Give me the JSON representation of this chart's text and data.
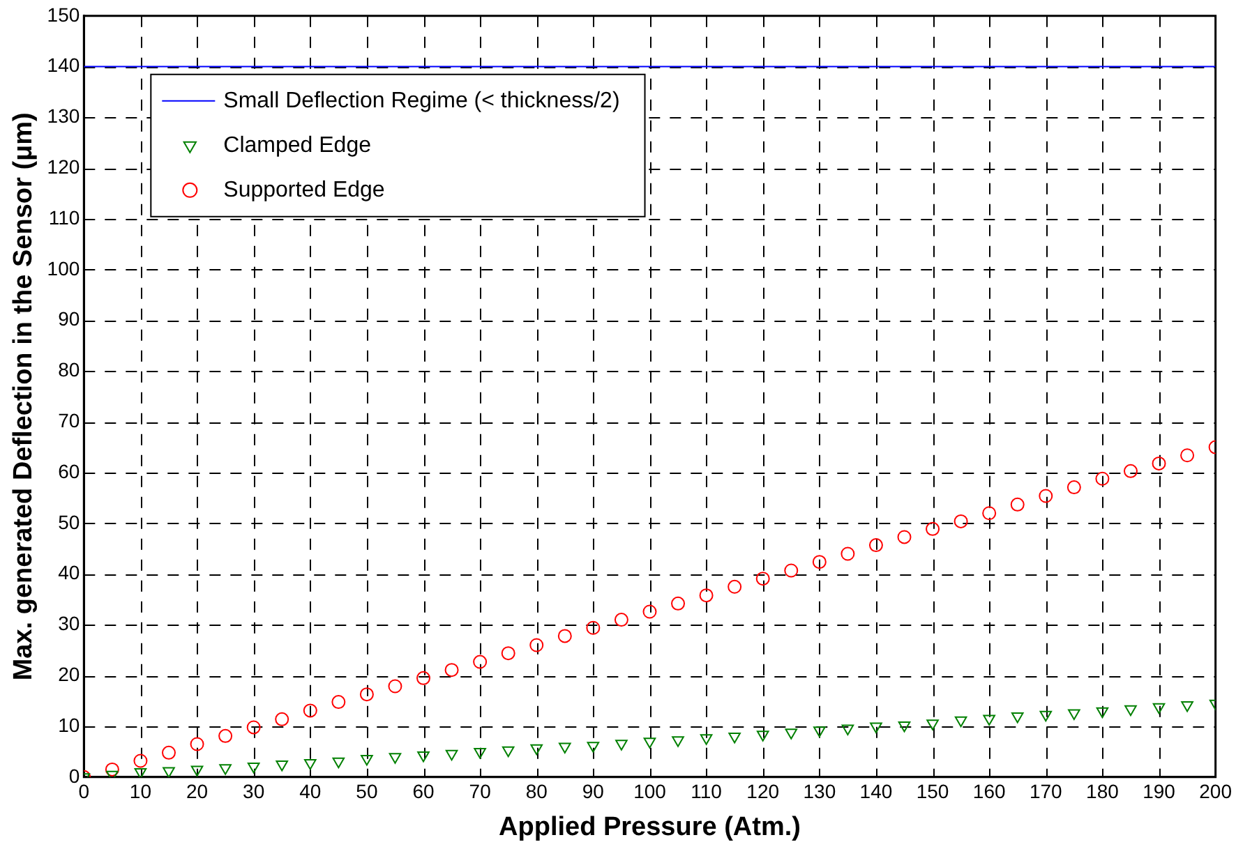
{
  "chart_data": {
    "type": "scatter",
    "xlabel": "Applied Pressure (Atm.)",
    "ylabel": "Max. generated Deflection in the Sensor (μm)",
    "x": [
      0,
      5,
      10,
      15,
      20,
      25,
      30,
      35,
      40,
      45,
      50,
      55,
      60,
      65,
      70,
      75,
      80,
      85,
      90,
      95,
      100,
      105,
      110,
      115,
      120,
      125,
      130,
      135,
      140,
      145,
      150,
      155,
      160,
      165,
      170,
      175,
      180,
      185,
      190,
      195,
      200
    ],
    "series": [
      {
        "name": "Small Deflection Regime (< thickness/2)",
        "type": "line",
        "color": "#0000ff",
        "marker": "none",
        "line_style": "solid",
        "x": [
          0,
          200
        ],
        "values": [
          140,
          140
        ]
      },
      {
        "name": "Clamped Edge",
        "color": "#008000",
        "marker": "triangle",
        "values": [
          0,
          0.5,
          1,
          1.2,
          1.5,
          1.8,
          2.1,
          2.5,
          2.8,
          3.1,
          3.6,
          4,
          4.3,
          4.6,
          5,
          5.3,
          5.7,
          6,
          6.2,
          6.6,
          7,
          7.3,
          7.7,
          8,
          8.4,
          8.8,
          9.2,
          9.6,
          10,
          10.2,
          10.6,
          11.2,
          11.5,
          12,
          12.3,
          12.6,
          13,
          13.4,
          13.8,
          14.2,
          14.5
        ]
      },
      {
        "name": "Supported Edge",
        "color": "#ff0000",
        "marker": "circle",
        "values": [
          0,
          1.5,
          3.2,
          4.8,
          6.5,
          8.1,
          9.8,
          11.4,
          13.1,
          14.8,
          16.3,
          17.9,
          19.5,
          21.1,
          22.7,
          24.4,
          26,
          27.8,
          29.4,
          31,
          32.6,
          34.2,
          35.8,
          37.5,
          39.1,
          40.7,
          42.4,
          44,
          45.7,
          47.3,
          48.9,
          50.4,
          52,
          53.7,
          55.4,
          57.1,
          58.8,
          60.3,
          61.8,
          63.4,
          65
        ]
      }
    ],
    "xlim": [
      0,
      200
    ],
    "xticks": [
      0,
      10,
      20,
      30,
      40,
      50,
      60,
      70,
      80,
      90,
      100,
      110,
      120,
      130,
      140,
      150,
      160,
      170,
      180,
      190,
      200
    ],
    "ylim": [
      0,
      150
    ],
    "yticks": [
      0,
      10,
      20,
      30,
      40,
      50,
      60,
      70,
      80,
      90,
      100,
      110,
      120,
      130,
      140,
      150
    ],
    "grid": true,
    "legend": "top left"
  }
}
